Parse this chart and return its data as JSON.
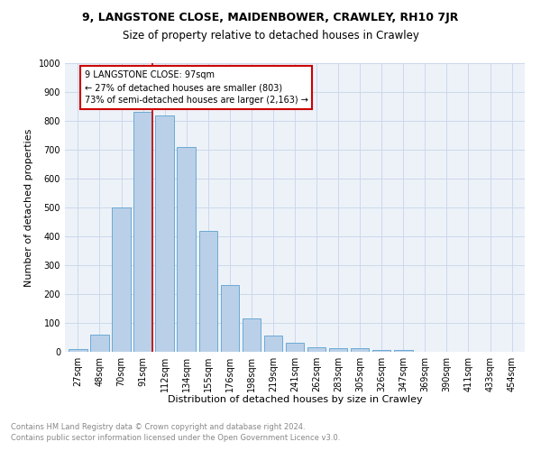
{
  "title": "9, LANGSTONE CLOSE, MAIDENBOWER, CRAWLEY, RH10 7JR",
  "subtitle": "Size of property relative to detached houses in Crawley",
  "xlabel": "Distribution of detached houses by size in Crawley",
  "ylabel": "Number of detached properties",
  "categories": [
    "27sqm",
    "48sqm",
    "70sqm",
    "91sqm",
    "112sqm",
    "134sqm",
    "155sqm",
    "176sqm",
    "198sqm",
    "219sqm",
    "241sqm",
    "262sqm",
    "283sqm",
    "305sqm",
    "326sqm",
    "347sqm",
    "369sqm",
    "390sqm",
    "411sqm",
    "433sqm",
    "454sqm"
  ],
  "values": [
    8,
    58,
    500,
    830,
    820,
    710,
    420,
    230,
    115,
    57,
    30,
    15,
    12,
    12,
    7,
    5,
    0,
    0,
    0,
    0,
    0
  ],
  "bar_color": "#bad0e8",
  "bar_edge_color": "#6aaad4",
  "vline_color": "#cc0000",
  "annotation_text": "9 LANGSTONE CLOSE: 97sqm\n← 27% of detached houses are smaller (803)\n73% of semi-detached houses are larger (2,163) →",
  "annotation_box_color": "#cc0000",
  "ylim": [
    0,
    1000
  ],
  "yticks": [
    0,
    100,
    200,
    300,
    400,
    500,
    600,
    700,
    800,
    900,
    1000
  ],
  "grid_color": "#cdd8ea",
  "bg_color": "#edf2f9",
  "footer_line1": "Contains HM Land Registry data © Crown copyright and database right 2024.",
  "footer_line2": "Contains public sector information licensed under the Open Government Licence v3.0.",
  "title_fontsize": 9,
  "subtitle_fontsize": 8.5,
  "axis_label_fontsize": 8,
  "tick_fontsize": 7,
  "footer_fontsize": 6
}
